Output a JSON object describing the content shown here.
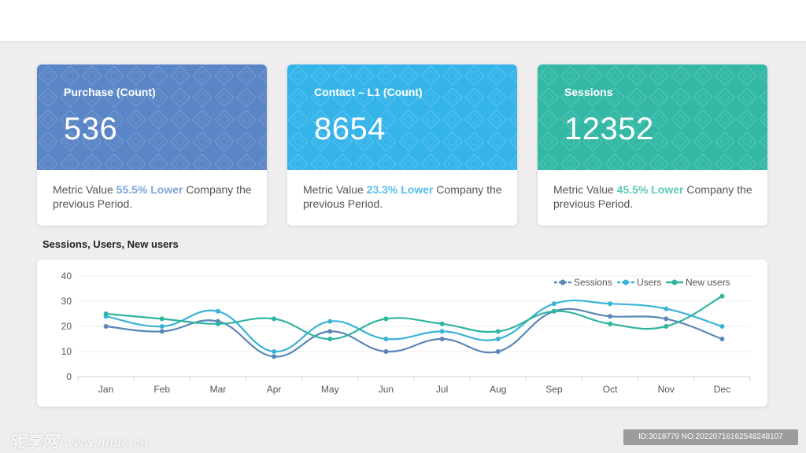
{
  "cards": [
    {
      "title": "Purchase (Count)",
      "value": "536",
      "desc_prefix": "Metric Value ",
      "desc_pct": "55.5% Lower",
      "desc_suffix": " Company the previous Period.",
      "color": "#5a85c6"
    },
    {
      "title": "Contact – L1 (Count)",
      "value": "8654",
      "desc_prefix": "Metric Value ",
      "desc_pct": "23.3% Lower",
      "desc_suffix": " Company the previous Period.",
      "color": "#35b4ea"
    },
    {
      "title": "Sessions",
      "value": "12352",
      "desc_prefix": "Metric Value ",
      "desc_pct": "45.5% Lower",
      "desc_suffix": " Company the previous Period.",
      "color": "#33b8a6"
    }
  ],
  "chart_title": "Sessions, Users, New users",
  "chart_data": {
    "type": "line",
    "title": "Sessions, Users, New users",
    "categories": [
      "Jan",
      "Feb",
      "Mar",
      "Apr",
      "May",
      "Jun",
      "Jul",
      "Aug",
      "Sep",
      "Oct",
      "Nov",
      "Dec"
    ],
    "yticks": [
      "0",
      "10",
      "20",
      "30",
      "40"
    ],
    "ylim": [
      0,
      40
    ],
    "grid": true,
    "legend": "top-right",
    "series": [
      {
        "name": "Sessions",
        "color": "#5b86b8",
        "dashed": true,
        "values": [
          20,
          18,
          22,
          8,
          18,
          10,
          15,
          10,
          26,
          24,
          23,
          15
        ]
      },
      {
        "name": "Users",
        "color": "#3ab3d6",
        "dashed": true,
        "values": [
          24,
          20,
          26,
          10,
          22,
          15,
          18,
          15,
          29,
          29,
          27,
          20
        ]
      },
      {
        "name": "New users",
        "color": "#2fb4a0",
        "dashed": false,
        "values": [
          25,
          23,
          21,
          23,
          15,
          23,
          21,
          18,
          26,
          21,
          20,
          32
        ]
      }
    ]
  },
  "watermark": {
    "left_brand": "昵享网",
    "left_url": "www.nipic.cn",
    "right_text": "ID:3018779 NO:20220716162548248107"
  }
}
